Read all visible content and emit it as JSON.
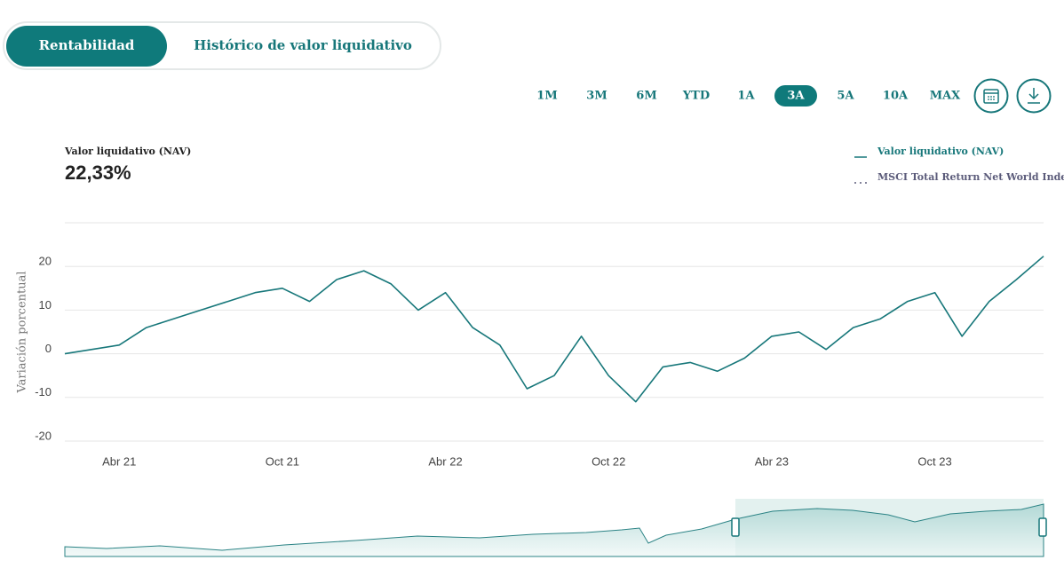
{
  "tabs": [
    "Rentabilidad",
    "Histórico de valor liquidativo"
  ],
  "active_tab": 0,
  "periods": [
    "1M",
    "3M",
    "6M",
    "YTD",
    "1A",
    "3A",
    "5A",
    "10A",
    "MAX"
  ],
  "active_period": 5,
  "nav_label": "Valor liquidativo (NAV)",
  "nav_value": "22,33%",
  "chart_data": {
    "type": "line",
    "y_label": "Variación porcentual",
    "x": [
      "2021-02",
      "2021-03",
      "2021-04",
      "2021-05",
      "2021-06",
      "2021-07",
      "2021-08",
      "2021-09",
      "2021-10",
      "2021-11",
      "2021-12",
      "2022-01",
      "2022-02",
      "2022-03",
      "2022-04",
      "2022-05",
      "2022-06",
      "2022-07",
      "2022-08",
      "2022-09",
      "2022-10",
      "2022-11",
      "2022-12",
      "2023-01",
      "2023-02",
      "2023-03",
      "2023-04",
      "2023-05",
      "2023-06",
      "2023-07",
      "2023-08",
      "2023-09",
      "2023-10",
      "2023-11",
      "2023-12",
      "2024-01",
      "2024-02"
    ],
    "series": [
      {
        "name": "Valor liquidativo (NAV)",
        "color": "#17777a",
        "dashed": false,
        "values": [
          0,
          1,
          2,
          6,
          8,
          10,
          12,
          14,
          15,
          12,
          17,
          19,
          16,
          10,
          14,
          6,
          2,
          -8,
          -5,
          4,
          -5,
          -11,
          -3,
          -2,
          -4,
          -1,
          4,
          5,
          1,
          6,
          8,
          12,
          14,
          4,
          12,
          17,
          22.33
        ]
      },
      {
        "name": "MSCI Total Return Net World Index",
        "color": "#5b5b7a",
        "dashed": true,
        "values": [
          null,
          null,
          null,
          null,
          null,
          null,
          null,
          null,
          null,
          null,
          null,
          null,
          null,
          null,
          null,
          null,
          null,
          null,
          null,
          null,
          null,
          null,
          null,
          null,
          null,
          null,
          null,
          null,
          null,
          null,
          null,
          null,
          null,
          null,
          null,
          null,
          null
        ]
      }
    ],
    "xlim": [
      "2021-02",
      "2024-02"
    ],
    "xticks": [
      {
        "value": "2021-04",
        "label": "Abr 21"
      },
      {
        "value": "2021-10",
        "label": "Oct 21"
      },
      {
        "value": "2022-04",
        "label": "Abr 22"
      },
      {
        "value": "2022-10",
        "label": "Oct 22"
      },
      {
        "value": "2023-04",
        "label": "Abr 23"
      },
      {
        "value": "2023-10",
        "label": "Oct 23"
      }
    ],
    "ylim": [
      -20,
      30
    ],
    "yticks": [
      -20,
      -10,
      0,
      10,
      20
    ],
    "grid": true
  }
}
